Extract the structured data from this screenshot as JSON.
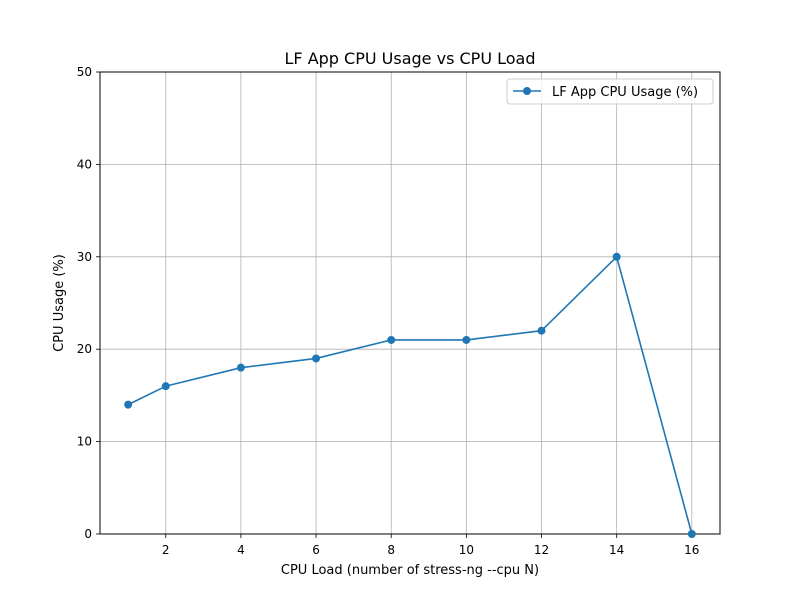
{
  "chart_data": {
    "type": "line",
    "title": "LF App CPU Usage vs CPU Load",
    "xlabel": "CPU Load (number of stress-ng --cpu N)",
    "ylabel": "CPU Usage (%)",
    "x": [
      1,
      2,
      4,
      6,
      8,
      10,
      12,
      14,
      16
    ],
    "series": [
      {
        "name": "LF App CPU Usage (%)",
        "values": [
          14,
          16,
          18,
          19,
          21,
          21,
          22,
          30,
          0
        ],
        "color": "#1f77b4",
        "marker": "circle"
      }
    ],
    "xlim": [
      0.25,
      16.75
    ],
    "ylim": [
      0,
      50
    ],
    "xticks": [
      2,
      4,
      6,
      8,
      10,
      12,
      14,
      16
    ],
    "yticks": [
      0,
      10,
      20,
      30,
      40,
      50
    ],
    "grid": true,
    "legend_position": "top-right"
  }
}
